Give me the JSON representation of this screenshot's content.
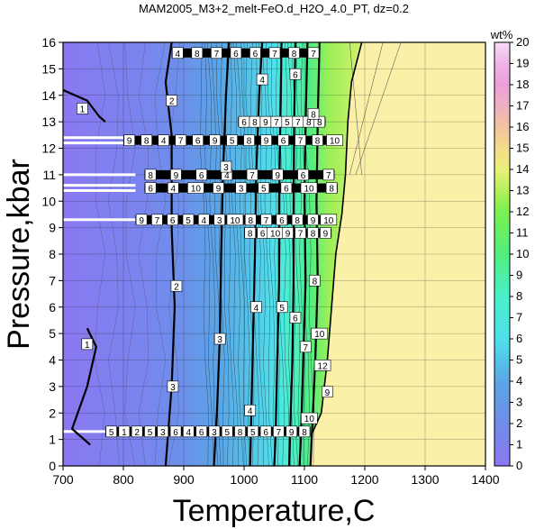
{
  "chart_data": {
    "type": "heatmap",
    "title": "MAM2005_M3+2_melt-FeO.d_H2O_4.0_PT, dz=0.2",
    "xlabel": "Temperature,C",
    "ylabel": "Pressure,kbar",
    "xlim": [
      700,
      1400
    ],
    "ylim": [
      0,
      16
    ],
    "xticks": [
      "700",
      "800",
      "900",
      "1000",
      "1100",
      "1200",
      "1300",
      "1400"
    ],
    "yticks": [
      "0",
      "1",
      "2",
      "3",
      "4",
      "5",
      "6",
      "7",
      "8",
      "9",
      "10",
      "11",
      "12",
      "13",
      "14",
      "15",
      "16"
    ],
    "grid": true,
    "colorbar": {
      "unit": "wt%",
      "range": [
        0,
        20
      ],
      "ticks": [
        "0",
        "1",
        "2",
        "3",
        "4",
        "5",
        "6",
        "7",
        "8",
        "9",
        "10",
        "11",
        "12",
        "13",
        "14",
        "15",
        "16",
        "17",
        "18",
        "19",
        "20"
      ],
      "stops": [
        {
          "value": 0,
          "color": "#8a78f0"
        },
        {
          "value": 2,
          "color": "#6f8de8"
        },
        {
          "value": 4,
          "color": "#5aa6e6"
        },
        {
          "value": 5,
          "color": "#55c3e8"
        },
        {
          "value": 6,
          "color": "#4fe0ea"
        },
        {
          "value": 8,
          "color": "#4af0c8"
        },
        {
          "value": 10,
          "color": "#52ee80"
        },
        {
          "value": 12,
          "color": "#7af050"
        },
        {
          "value": 13,
          "color": "#b5ef5a"
        },
        {
          "value": 14,
          "color": "#e8f07a"
        },
        {
          "value": 15,
          "color": "#f5dc8a"
        },
        {
          "value": 16,
          "color": "#f2c2a0"
        },
        {
          "value": 17,
          "color": "#eeb0c0"
        },
        {
          "value": 18,
          "color": "#eba0d8"
        },
        {
          "value": 19,
          "color": "#f0b4e8"
        },
        {
          "value": 20,
          "color": "#f8dcf6"
        }
      ]
    },
    "solidus_boundary": [
      {
        "T": 1110,
        "P": 0
      },
      {
        "T": 1112,
        "P": 1.2
      },
      {
        "T": 1128,
        "P": 2
      },
      {
        "T": 1138,
        "P": 4
      },
      {
        "T": 1145,
        "P": 6
      },
      {
        "T": 1152,
        "P": 8
      },
      {
        "T": 1162,
        "P": 9.5
      },
      {
        "T": 1168,
        "P": 11
      },
      {
        "T": 1172,
        "P": 13
      },
      {
        "T": 1178,
        "P": 14.5
      },
      {
        "T": 1195,
        "P": 16
      }
    ],
    "background_color": "#fbf0a8",
    "bold_contours": [
      {
        "level": "1",
        "points": [
          [
            745,
            0.8
          ],
          [
            715,
            1.4
          ],
          [
            740,
            3
          ],
          [
            755,
            4.5
          ],
          [
            740,
            5.2
          ]
        ]
      },
      {
        "level": "1",
        "points": [
          [
            700,
            14.2
          ],
          [
            740,
            13.8
          ],
          [
            760,
            13.2
          ],
          [
            770,
            13
          ]
        ]
      },
      {
        "level": "2",
        "points": [
          [
            880,
            16
          ],
          [
            870,
            14.5
          ],
          [
            880,
            12.5
          ],
          [
            880,
            9
          ],
          [
            885,
            6
          ],
          [
            880,
            3
          ],
          [
            875,
            1.5
          ],
          [
            870,
            0
          ]
        ]
      },
      {
        "level": "3",
        "points": [
          [
            975,
            16
          ],
          [
            970,
            14
          ],
          [
            965,
            11
          ],
          [
            962,
            8
          ],
          [
            960,
            5
          ],
          [
            955,
            2
          ],
          [
            950,
            0
          ]
        ]
      },
      {
        "level": "4",
        "points": [
          [
            1030,
            16
          ],
          [
            1025,
            14
          ],
          [
            1020,
            11
          ],
          [
            1018,
            8
          ],
          [
            1015,
            5
          ],
          [
            1012,
            2
          ],
          [
            1010,
            0
          ]
        ]
      },
      {
        "level": "5",
        "points": [
          [
            1062,
            16
          ],
          [
            1060,
            13
          ],
          [
            1058,
            10
          ],
          [
            1058,
            7
          ],
          [
            1055,
            4
          ],
          [
            1052,
            1
          ],
          [
            1050,
            0
          ]
        ]
      },
      {
        "level": "6",
        "points": [
          [
            1085,
            16
          ],
          [
            1083,
            13
          ],
          [
            1082,
            10
          ],
          [
            1082,
            7
          ],
          [
            1080,
            4
          ],
          [
            1076,
            1
          ],
          [
            1075,
            0
          ]
        ]
      },
      {
        "level": "7",
        "points": [
          [
            1105,
            16
          ],
          [
            1102,
            13
          ],
          [
            1100,
            10
          ],
          [
            1102,
            7
          ],
          [
            1098,
            4
          ],
          [
            1094,
            1
          ],
          [
            1092,
            0
          ]
        ]
      },
      {
        "level": "8",
        "points": [
          [
            1125,
            16
          ],
          [
            1122,
            13
          ],
          [
            1120,
            10
          ],
          [
            1122,
            7
          ],
          [
            1118,
            4
          ],
          [
            1112,
            1
          ],
          [
            1110,
            0
          ]
        ]
      }
    ],
    "contour_labels": [
      {
        "text": "1",
        "T": 732,
        "P": 13.5
      },
      {
        "text": "1",
        "T": 740,
        "P": 4.6
      },
      {
        "text": "2",
        "T": 880,
        "P": 13.8
      },
      {
        "text": "2",
        "T": 888,
        "P": 6.8
      },
      {
        "text": "3",
        "T": 882,
        "P": 3.0
      },
      {
        "text": "3",
        "T": 970,
        "P": 11.3
      },
      {
        "text": "3",
        "T": 960,
        "P": 4.8
      },
      {
        "text": "4",
        "T": 1030,
        "P": 14.6
      },
      {
        "text": "4",
        "T": 1020,
        "P": 6.0
      },
      {
        "text": "4",
        "T": 1010,
        "P": 2.1
      },
      {
        "text": "5",
        "T": 1063,
        "P": 6.0
      },
      {
        "text": "6",
        "T": 1085,
        "P": 14.8
      },
      {
        "text": "6",
        "T": 1085,
        "P": 5.6
      },
      {
        "text": "7",
        "T": 1102,
        "P": 4.5
      },
      {
        "text": "8",
        "T": 1115,
        "P": 13.3
      },
      {
        "text": "8",
        "T": 1117,
        "P": 7.0
      },
      {
        "text": "10",
        "T": 1125,
        "P": 5.0
      },
      {
        "text": "12",
        "T": 1130,
        "P": 3.8
      },
      {
        "text": "9",
        "T": 1138,
        "P": 2.8
      },
      {
        "text": "10",
        "T": 1108,
        "P": 1.8
      }
    ],
    "dense_rows": [
      {
        "P": 15.6,
        "T0": 880,
        "T1": 1125,
        "labels": [
          "4",
          "8",
          "7",
          "6",
          "6",
          "7",
          "8",
          "7"
        ]
      },
      {
        "P": 13.0,
        "T0": 990,
        "T1": 1135,
        "labels": [
          "6",
          "8",
          "9",
          "7",
          "5",
          "7",
          "8",
          "8"
        ]
      },
      {
        "P": 12.3,
        "T0": 800,
        "T1": 1160,
        "labels": [
          "9",
          "8",
          "4",
          "7",
          "6",
          "9",
          "5",
          "8",
          "9",
          "6",
          "7",
          "8",
          "10"
        ]
      },
      {
        "P": 11.0,
        "T0": 835,
        "T1": 1150,
        "labels": [
          "8",
          "9",
          "6",
          "4",
          "7",
          "9",
          "6",
          "7"
        ]
      },
      {
        "P": 10.5,
        "T0": 835,
        "T1": 1155,
        "labels": [
          "6",
          "4",
          "10",
          "9",
          "3",
          "5",
          "6",
          "10",
          "8"
        ]
      },
      {
        "P": 9.3,
        "T0": 820,
        "T1": 1150,
        "labels": [
          "9",
          "7",
          "6",
          "5",
          "4",
          "3",
          "10",
          "8",
          "7",
          "6",
          "8",
          "9",
          "10"
        ]
      },
      {
        "P": 8.8,
        "T0": 1000,
        "T1": 1145,
        "labels": [
          "8",
          "6",
          "10",
          "9",
          "7",
          "8",
          "9"
        ]
      },
      {
        "P": 1.3,
        "T0": 770,
        "T1": 1110,
        "labels": [
          "5",
          "1",
          "2",
          "5",
          "3",
          "6",
          "4",
          "6",
          "3",
          "5",
          "8",
          "5",
          "6",
          "7",
          "9",
          "8"
        ]
      }
    ],
    "white_gap_rows": [
      12.4,
      12.2,
      11.0,
      10.6,
      10.4,
      9.3,
      1.3
    ]
  }
}
